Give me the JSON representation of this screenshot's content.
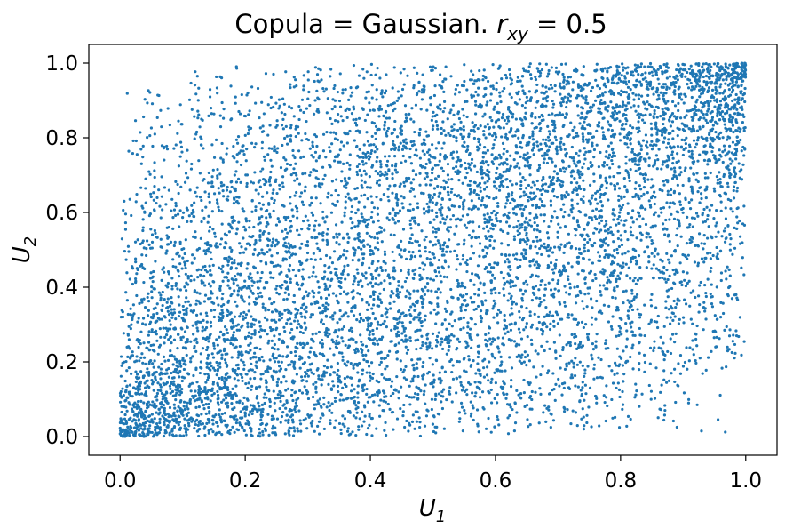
{
  "chart_data": {
    "type": "scatter",
    "title": "Copula = Gaussian. r_xy = 0.5",
    "title_parts": {
      "prefix": "Copula = Gaussian. ",
      "var": "r",
      "sub": "xy",
      "suffix": " = 0.5"
    },
    "xlabel": {
      "base": "U",
      "sub": "1"
    },
    "ylabel": {
      "base": "U",
      "sub": "2"
    },
    "xlim": [
      -0.05,
      1.05
    ],
    "ylim": [
      -0.05,
      1.05
    ],
    "xticks": [
      0.0,
      0.2,
      0.4,
      0.6,
      0.8,
      1.0
    ],
    "yticks": [
      0.0,
      0.2,
      0.4,
      0.6,
      0.8,
      1.0
    ],
    "xtick_labels": [
      "0.0",
      "0.2",
      "0.4",
      "0.6",
      "0.8",
      "1.0"
    ],
    "ytick_labels": [
      "0.0",
      "0.2",
      "0.4",
      "0.6",
      "0.8",
      "1.0"
    ],
    "grid": false,
    "marker_color": "#1f77b4",
    "correlation_rho": 0.5,
    "n_points": 8000,
    "x": "approx. uniform on [0, 1] (Gaussian-copula sample)",
    "y": "approx. uniform on [0, 1], correlated with x (r = 0.5)"
  }
}
